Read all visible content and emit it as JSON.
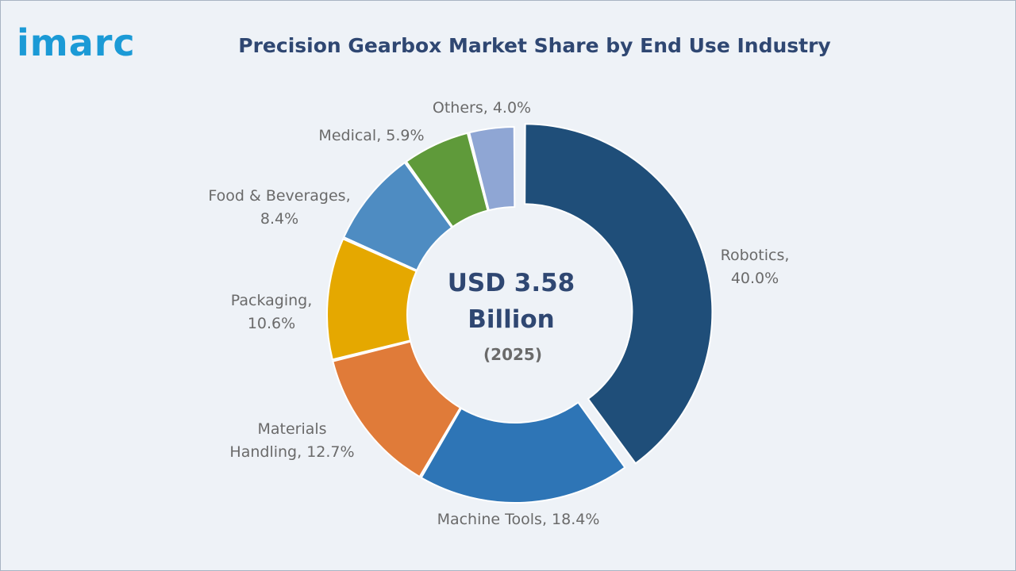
{
  "brand": {
    "logo_text": "imarc",
    "logo_color": "#1b9ad6"
  },
  "chart_data": {
    "type": "pie",
    "title": "Precision Gearbox Market Share by End Use Industry",
    "donut": true,
    "center_text": [
      "USD 3.58",
      "Billion"
    ],
    "center_subtext": "(2025)",
    "legend": "none",
    "slices": [
      {
        "name": "Robotics",
        "value": 40.0,
        "label_lines": [
          "Robotics,",
          "40.0%"
        ],
        "color": "#1f4e79",
        "exploded": true
      },
      {
        "name": "Machine Tools",
        "value": 18.4,
        "label_lines": [
          "Machine Tools, 18.4%"
        ],
        "color": "#2e75b6"
      },
      {
        "name": "Materials Handling",
        "value": 12.7,
        "label_lines": [
          "Materials",
          "Handling, 12.7%"
        ],
        "color": "#e07b39"
      },
      {
        "name": "Packaging",
        "value": 10.6,
        "label_lines": [
          "Packaging,",
          "10.6%"
        ],
        "color": "#e5a800"
      },
      {
        "name": "Food & Beverages",
        "value": 8.4,
        "label_lines": [
          "Food & Beverages,",
          "8.4%"
        ],
        "color": "#4e8cc2"
      },
      {
        "name": "Medical",
        "value": 5.9,
        "label_lines": [
          "Medical, 5.9%"
        ],
        "color": "#5f9a3a"
      },
      {
        "name": "Others",
        "value": 4.0,
        "label_lines": [
          "Others, 4.0%"
        ],
        "color": "#8fa6d4"
      }
    ]
  }
}
